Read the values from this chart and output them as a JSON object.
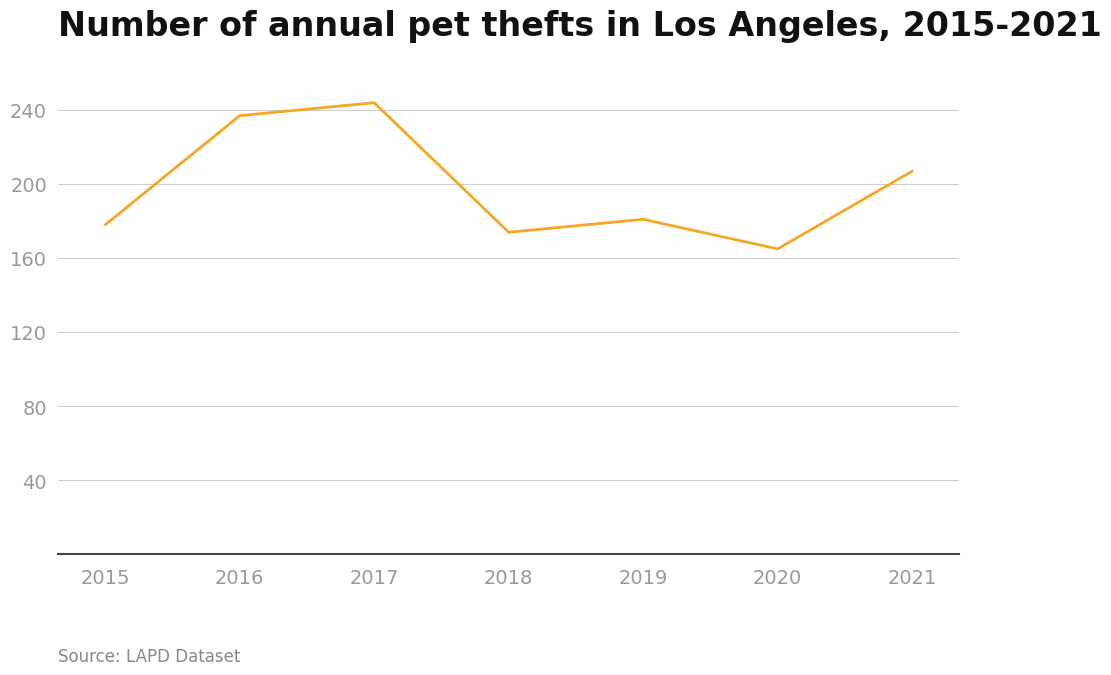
{
  "title": "Number of annual pet thefts in Los Angeles, 2015-2021",
  "years": [
    2015,
    2016,
    2017,
    2018,
    2019,
    2020,
    2021
  ],
  "values": [
    178,
    237,
    244,
    174,
    181,
    165,
    207
  ],
  "line_color": "#F5A623",
  "line_width": 2.0,
  "background_color": "#ffffff",
  "yticks": [
    40,
    80,
    120,
    160,
    200,
    240
  ],
  "ylim": [
    0,
    258
  ],
  "xlim": [
    2014.65,
    2021.35
  ],
  "grid_color": "#cccccc",
  "source_text": "Source: LAPD Dataset",
  "title_fontsize": 24,
  "tick_fontsize": 14,
  "source_fontsize": 12,
  "tick_color": "#999999",
  "title_color": "#111111",
  "source_color": "#888888"
}
